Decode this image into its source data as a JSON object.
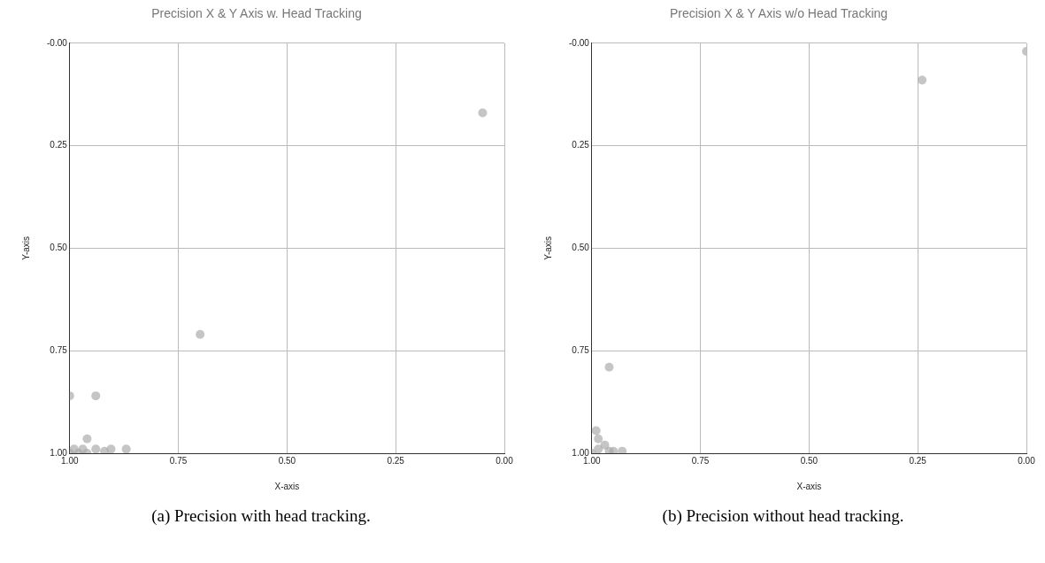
{
  "chart_data": [
    {
      "type": "scatter",
      "title": "Precision X & Y Axis w. Head Tracking",
      "xlabel": "X-axis",
      "ylabel": "Y-axis",
      "xlim": [
        1,
        0
      ],
      "ylim": [
        1,
        0
      ],
      "xticks": [
        {
          "value": 1,
          "label": "1.00"
        },
        {
          "value": 0.75,
          "label": "0.75"
        },
        {
          "value": 0.5,
          "label": "0.50"
        },
        {
          "value": 0.25,
          "label": "0.25"
        },
        {
          "value": 0,
          "label": "0.00"
        }
      ],
      "yticks": [
        {
          "value": 0,
          "label": "-0.00"
        },
        {
          "value": 0.25,
          "label": "0.25"
        },
        {
          "value": 0.5,
          "label": "0.50"
        },
        {
          "value": 0.75,
          "label": "0.75"
        },
        {
          "value": 1,
          "label": "1.00"
        }
      ],
      "grid": true,
      "legend": false,
      "marker": "circle",
      "series": [
        {
          "color": "#a6a6a6",
          "x": [
            0.05,
            0.7,
            1.0,
            0.94,
            0.96,
            0.87,
            0.905,
            0.92,
            0.94,
            1.0,
            0.99,
            0.98,
            0.97,
            0.96
          ],
          "values": [
            0.17,
            0.71,
            0.86,
            0.86,
            0.965,
            0.99,
            0.99,
            0.995,
            0.99,
            1.0,
            0.99,
            1.0,
            0.99,
            1.0
          ]
        }
      ],
      "annotations": [
        "(a) Precision with head tracking."
      ]
    },
    {
      "type": "scatter",
      "title": "Precision X & Y Axis w/o Head Tracking",
      "xlabel": "X-axis",
      "ylabel": "Y-axis",
      "xlim": [
        1,
        0
      ],
      "ylim": [
        1,
        0
      ],
      "xticks": [
        {
          "value": 1,
          "label": "1.00"
        },
        {
          "value": 0.75,
          "label": "0.75"
        },
        {
          "value": 0.5,
          "label": "0.50"
        },
        {
          "value": 0.25,
          "label": "0.25"
        },
        {
          "value": 0,
          "label": "0.00"
        }
      ],
      "yticks": [
        {
          "value": 0,
          "label": "-0.00"
        },
        {
          "value": 0.25,
          "label": "0.25"
        },
        {
          "value": 0.5,
          "label": "0.50"
        },
        {
          "value": 0.75,
          "label": "0.75"
        },
        {
          "value": 1,
          "label": "1.00"
        }
      ],
      "grid": true,
      "legend": false,
      "marker": "circle",
      "series": [
        {
          "color": "#a6a6a6",
          "x": [
            0.0,
            0.24,
            0.96,
            0.99,
            0.985,
            0.97,
            0.95,
            0.93,
            0.96,
            0.985,
            1.0
          ],
          "values": [
            0.02,
            0.09,
            0.79,
            0.945,
            0.965,
            0.98,
            0.995,
            0.995,
            0.995,
            0.99,
            1.0
          ]
        }
      ],
      "annotations": [
        "(b) Precision without head tracking."
      ]
    }
  ]
}
